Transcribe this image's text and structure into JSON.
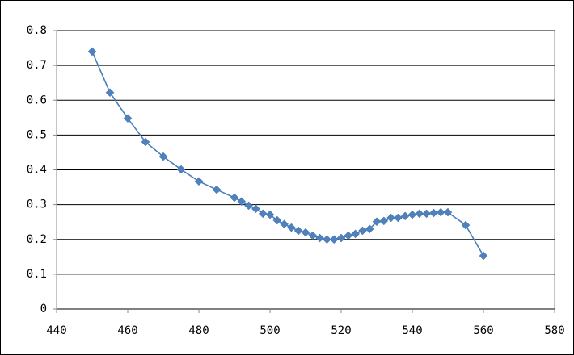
{
  "chart_data": {
    "type": "line",
    "x": [
      450,
      455,
      460,
      465,
      470,
      475,
      480,
      485,
      490,
      492,
      494,
      496,
      498,
      500,
      502,
      504,
      506,
      508,
      510,
      512,
      514,
      516,
      518,
      520,
      522,
      524,
      526,
      528,
      530,
      532,
      534,
      536,
      538,
      540,
      542,
      544,
      546,
      548,
      550,
      555,
      560
    ],
    "series": [
      {
        "color": "#4a7ebb",
        "values": [
          0.74,
          0.622,
          0.548,
          0.48,
          0.438,
          0.401,
          0.367,
          0.343,
          0.32,
          0.309,
          0.297,
          0.288,
          0.274,
          0.271,
          0.255,
          0.244,
          0.234,
          0.225,
          0.22,
          0.211,
          0.204,
          0.2,
          0.2,
          0.204,
          0.211,
          0.216,
          0.225,
          0.23,
          0.251,
          0.253,
          0.262,
          0.262,
          0.267,
          0.271,
          0.274,
          0.274,
          0.276,
          0.278,
          0.278,
          0.241,
          0.153
        ]
      }
    ],
    "xlim": [
      440,
      580
    ],
    "xticks": [
      440,
      460,
      480,
      500,
      520,
      540,
      560,
      580
    ],
    "ylim": [
      0,
      0.8
    ],
    "yticks": [
      0,
      0.1,
      0.2,
      0.3,
      0.4,
      0.5,
      0.6,
      0.7,
      0.8
    ],
    "grid": true,
    "marker": "diamond"
  }
}
